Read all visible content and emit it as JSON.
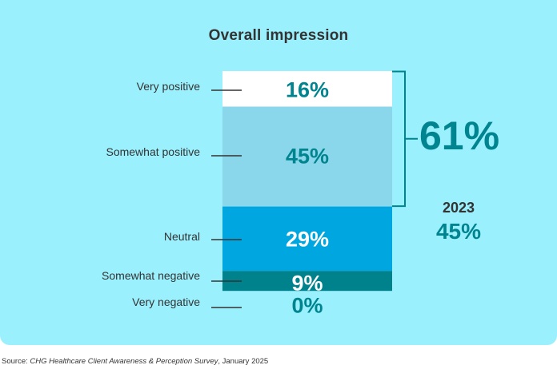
{
  "chart_data": {
    "type": "bar",
    "subtype": "stacked-100",
    "title": "Overall impression",
    "categories": [
      "Very positive",
      "Somewhat positive",
      "Neutral",
      "Somewhat negative",
      "Very negative"
    ],
    "values": [
      16,
      45,
      29,
      9,
      0
    ],
    "value_labels": [
      "16%",
      "45%",
      "29%",
      "9%",
      "0%"
    ],
    "colors": [
      "#ffffff",
      "#8ad6ea",
      "#00a6e0",
      "#00828c",
      "#00828c"
    ],
    "label_colors": [
      "#00848f",
      "#00848f",
      "#ffffff",
      "#ffffff",
      "#00848f"
    ],
    "bracket": {
      "covers": [
        "Very positive",
        "Somewhat positive"
      ],
      "label": "61%"
    },
    "comparison": {
      "year": "2023",
      "value": "45%"
    }
  },
  "source": {
    "prefix": "Source: ",
    "title": "CHG Healthcare Client Awareness & Perception Survey",
    "suffix": ", January 2025"
  },
  "colors": {
    "background": "#9bf0fd",
    "accent": "#00848f"
  }
}
